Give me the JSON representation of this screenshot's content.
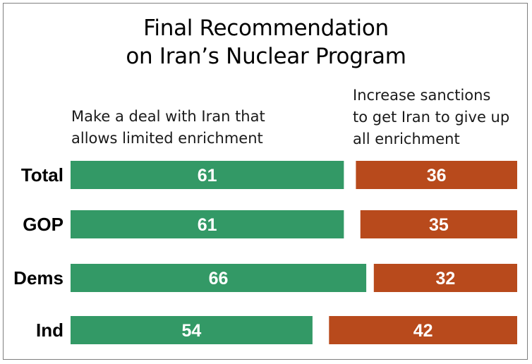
{
  "chart_data": {
    "type": "bar",
    "stacked": "diverging-two-column",
    "title_lines": [
      "Final Recommendation",
      "on Iran’s Nuclear Program"
    ],
    "categories": [
      "Total",
      "GOP",
      "Dems",
      "Ind"
    ],
    "series": [
      {
        "name_lines": [
          "Make a deal with Iran that",
          "allows limited enrichment"
        ],
        "values": [
          61,
          61,
          66,
          54
        ],
        "color": "#339966"
      },
      {
        "name_lines": [
          "Increase sanctions",
          "to get Iran to give up",
          "all enrichment"
        ],
        "values": [
          36,
          35,
          32,
          42
        ],
        "color": "#b84a1c"
      }
    ],
    "value_label_color": "#ffffff",
    "grid": false,
    "legend": "above-columns"
  }
}
